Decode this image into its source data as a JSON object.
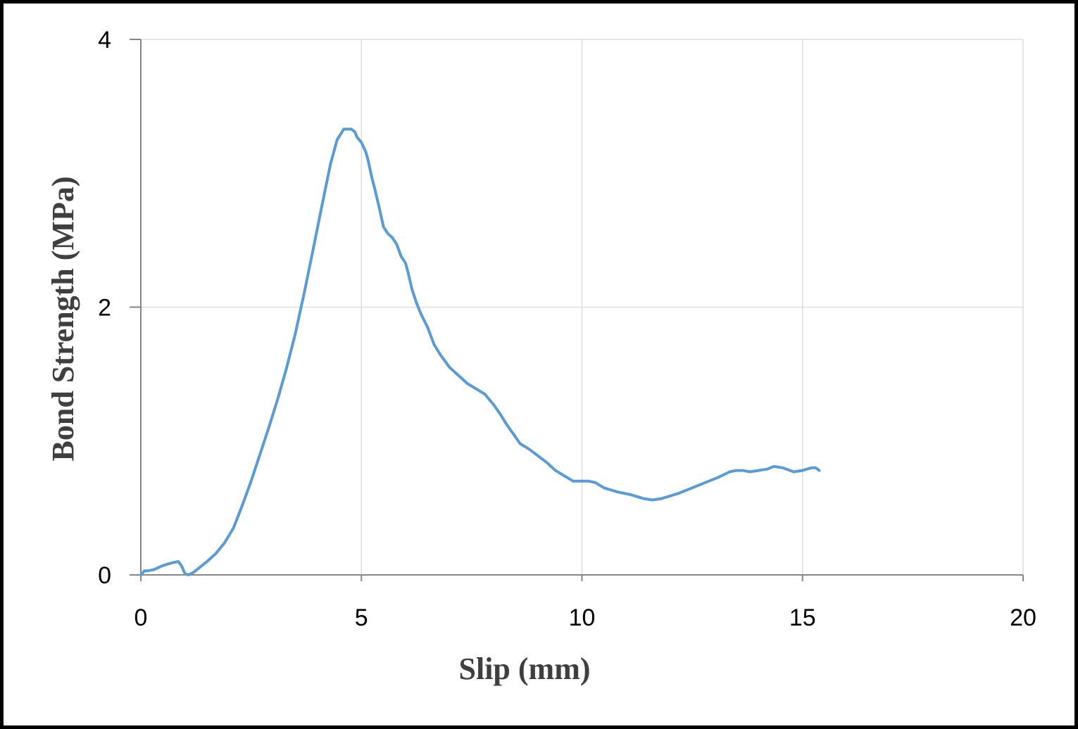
{
  "chart_data": {
    "type": "line",
    "title": "",
    "xlabel": "Slip (mm)",
    "ylabel": "Bond Strength (MPa)",
    "xlim": [
      0,
      20
    ],
    "ylim": [
      0,
      4
    ],
    "x_ticks": [
      0,
      5,
      10,
      15,
      20
    ],
    "y_ticks": [
      0,
      2,
      4
    ],
    "x_tick_labels": [
      "0",
      "5",
      "10",
      "15",
      "20"
    ],
    "y_tick_labels": [
      "0",
      "2",
      "4"
    ],
    "grid": true,
    "legend": "none",
    "colors": {
      "line": "#5b9bd5",
      "grid": "#d9d9d9",
      "axis": "#868686",
      "frame": "#000000"
    },
    "series": [
      {
        "x": [
          0.0,
          0.08,
          0.15,
          0.3,
          0.5,
          0.7,
          0.85,
          0.92,
          1.0,
          1.08,
          1.2,
          1.35,
          1.5,
          1.7,
          1.9,
          2.1,
          2.3,
          2.5,
          2.7,
          2.9,
          3.1,
          3.3,
          3.5,
          3.7,
          3.9,
          4.1,
          4.3,
          4.45,
          4.6,
          4.7,
          4.77,
          4.85,
          4.9,
          5.0,
          5.1,
          5.15,
          5.25,
          5.3,
          5.4,
          5.5,
          5.6,
          5.7,
          5.8,
          5.9,
          6.0,
          6.05,
          6.15,
          6.25,
          6.35,
          6.5,
          6.65,
          6.8,
          7.0,
          7.2,
          7.4,
          7.6,
          7.8,
          7.9,
          8.0,
          8.15,
          8.3,
          8.45,
          8.6,
          8.8,
          9.0,
          9.2,
          9.4,
          9.6,
          9.8,
          10.0,
          10.15,
          10.3,
          10.5,
          10.8,
          11.1,
          11.4,
          11.6,
          11.8,
          12.0,
          12.2,
          12.5,
          12.8,
          13.1,
          13.35,
          13.5,
          13.65,
          13.8,
          14.0,
          14.2,
          14.35,
          14.55,
          14.8,
          15.0,
          15.2,
          15.3,
          15.38
        ],
        "y": [
          0.0,
          0.03,
          0.03,
          0.04,
          0.07,
          0.09,
          0.1,
          0.07,
          0.01,
          0.0,
          0.02,
          0.06,
          0.1,
          0.16,
          0.24,
          0.35,
          0.52,
          0.7,
          0.9,
          1.1,
          1.31,
          1.54,
          1.8,
          2.1,
          2.42,
          2.75,
          3.07,
          3.25,
          3.33,
          3.33,
          3.33,
          3.31,
          3.27,
          3.23,
          3.16,
          3.1,
          2.95,
          2.89,
          2.75,
          2.6,
          2.55,
          2.52,
          2.47,
          2.38,
          2.33,
          2.27,
          2.13,
          2.03,
          1.95,
          1.85,
          1.72,
          1.64,
          1.55,
          1.49,
          1.43,
          1.39,
          1.35,
          1.31,
          1.27,
          1.2,
          1.12,
          1.05,
          0.98,
          0.94,
          0.89,
          0.84,
          0.78,
          0.74,
          0.7,
          0.7,
          0.7,
          0.69,
          0.65,
          0.62,
          0.6,
          0.57,
          0.56,
          0.57,
          0.59,
          0.61,
          0.65,
          0.69,
          0.73,
          0.77,
          0.78,
          0.78,
          0.77,
          0.78,
          0.79,
          0.81,
          0.8,
          0.77,
          0.78,
          0.8,
          0.8,
          0.78
        ]
      }
    ]
  }
}
